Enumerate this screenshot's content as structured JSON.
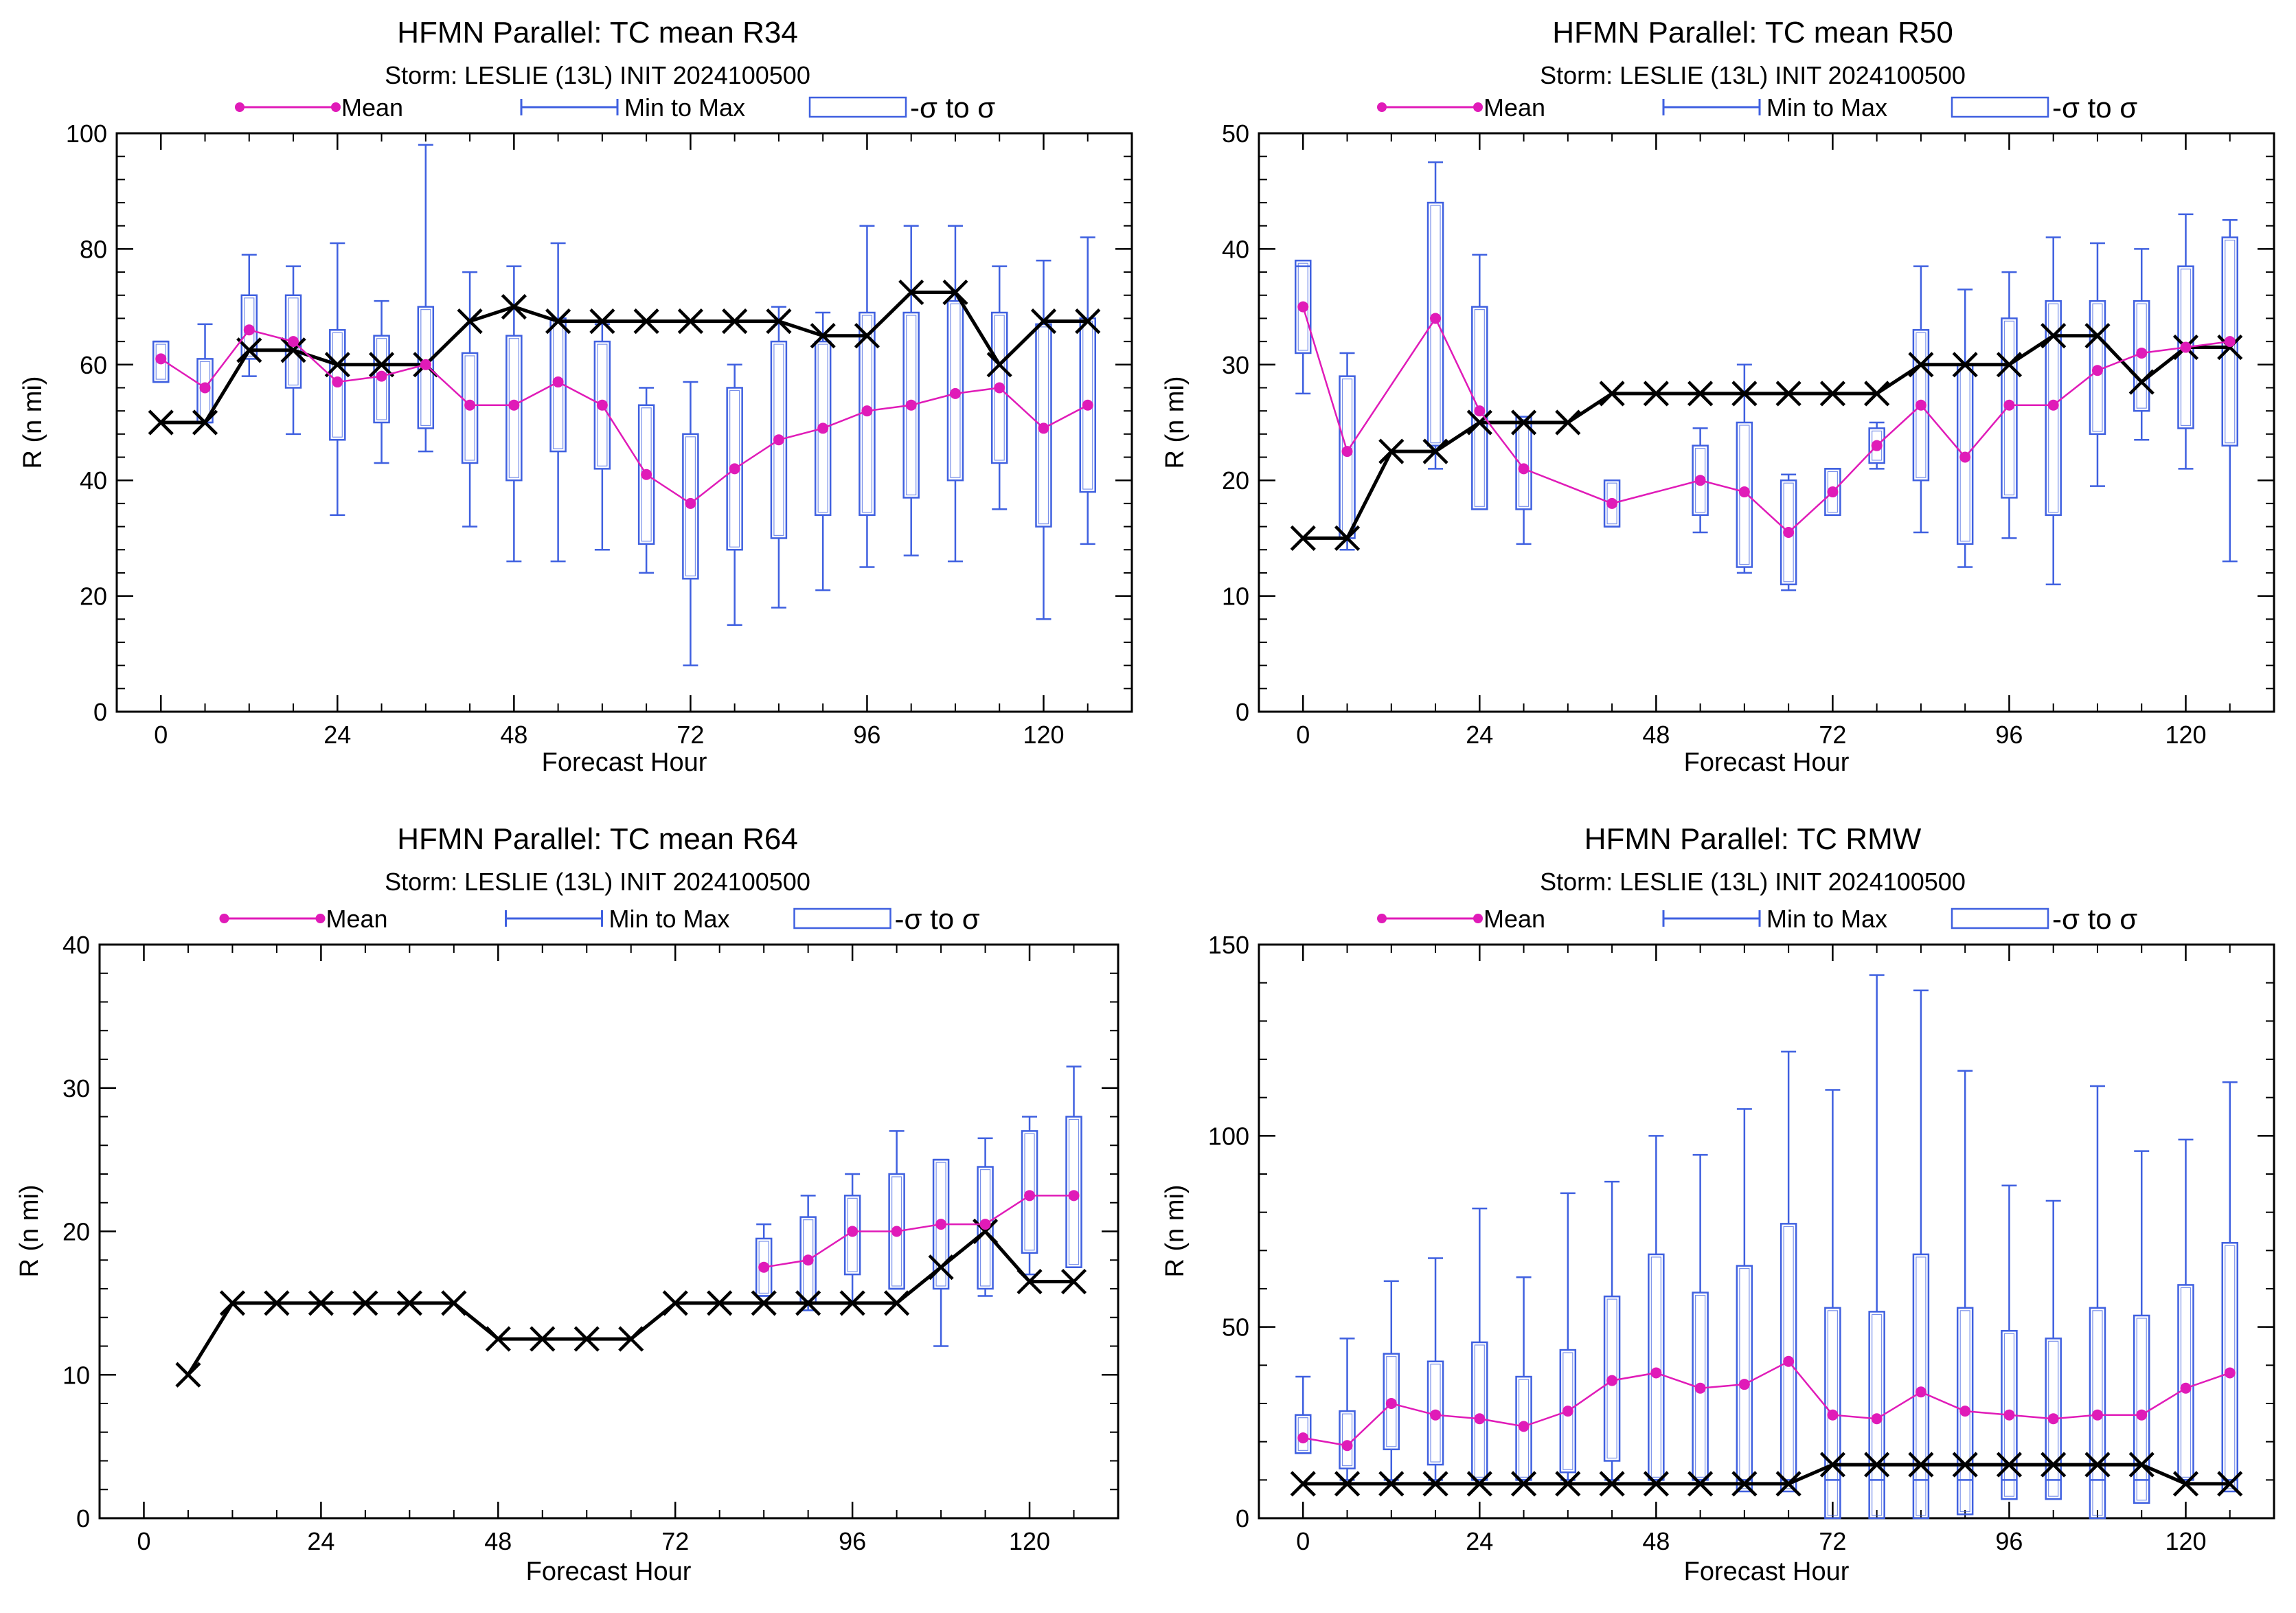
{
  "colors": {
    "mean": "#e01bb8",
    "minmax": "#3f60e0",
    "box": "#3f60e0",
    "obs": "#000000"
  },
  "legend": {
    "mean": "Mean",
    "minmax": "Min to Max",
    "sigma": "-σ to σ"
  },
  "chart_data": [
    {
      "type": "box",
      "title": "HFMN Parallel: TC mean R34",
      "subtitle": "Storm: LESLIE (13L) INIT 2024100500",
      "xlabel": "Forecast Hour",
      "ylabel": "R (n mi)",
      "xlim": [
        -6,
        132
      ],
      "ylim": [
        0,
        100
      ],
      "xticks": [
        0,
        24,
        48,
        72,
        96,
        120
      ],
      "yticks": [
        0,
        20,
        40,
        60,
        80,
        100
      ],
      "legend_position": "top",
      "mean": {
        "x": [
          0,
          6,
          12,
          18,
          24,
          30,
          36,
          42,
          48,
          54,
          60,
          66,
          72,
          78,
          84,
          90,
          96,
          102,
          108,
          114,
          120,
          126
        ],
        "y": [
          61,
          56,
          66,
          64,
          57,
          58,
          60,
          53,
          53,
          57,
          53,
          41,
          36,
          42,
          47,
          49,
          52,
          53,
          55,
          56,
          49,
          53
        ]
      },
      "min": [
        57,
        50,
        58,
        48,
        34,
        43,
        45,
        32,
        26,
        26,
        28,
        24,
        8,
        15,
        18,
        21,
        25,
        27,
        26,
        35,
        16,
        29
      ],
      "max": [
        64,
        67,
        79,
        77,
        81,
        71,
        98,
        76,
        77,
        81,
        67,
        56,
        57,
        60,
        70,
        69,
        84,
        84,
        84,
        77,
        78,
        82
      ],
      "sigma_low": [
        57,
        50,
        61,
        56,
        47,
        50,
        49,
        43,
        40,
        45,
        42,
        29,
        23,
        28,
        30,
        34,
        34,
        37,
        40,
        43,
        32,
        38
      ],
      "sigma_high": [
        64,
        61,
        72,
        72,
        66,
        65,
        70,
        62,
        65,
        68,
        64,
        53,
        48,
        56,
        64,
        64,
        69,
        69,
        71,
        69,
        67,
        68
      ],
      "observed": {
        "x": [
          0,
          6,
          12,
          18,
          24,
          30,
          36,
          42,
          48,
          54,
          60,
          66,
          72,
          78,
          84,
          90,
          96,
          102,
          108,
          114,
          120,
          126
        ],
        "y": [
          50,
          50,
          62.5,
          62.5,
          60,
          60,
          60,
          67.5,
          70,
          67.5,
          67.5,
          67.5,
          67.5,
          67.5,
          67.5,
          65,
          65,
          72.5,
          72.5,
          60,
          67.5,
          67.5
        ]
      }
    },
    {
      "type": "box",
      "title": "HFMN Parallel: TC mean R50",
      "subtitle": "Storm: LESLIE (13L) INIT 2024100500",
      "xlabel": "Forecast Hour",
      "ylabel": "R (n mi)",
      "xlim": [
        -6,
        132
      ],
      "ylim": [
        0,
        50
      ],
      "xticks": [
        0,
        24,
        48,
        72,
        96,
        120
      ],
      "yticks": [
        0,
        10,
        20,
        30,
        40,
        50
      ],
      "legend_position": "top",
      "mean": {
        "x": [
          0,
          6,
          18,
          24,
          30,
          42,
          54,
          60,
          66,
          72,
          78,
          84,
          90,
          96,
          102,
          108,
          114,
          120,
          126
        ],
        "y": [
          35,
          22.5,
          34,
          26,
          21,
          18,
          20,
          19,
          15.5,
          19,
          23,
          26.5,
          22,
          26.5,
          26.5,
          29.5,
          31,
          31.5,
          32
        ]
      },
      "min": [
        27.5,
        14,
        21,
        17.5,
        14.5,
        16,
        15.5,
        12,
        10.5,
        17,
        21,
        15.5,
        12.5,
        15,
        11,
        19.5,
        23.5,
        21,
        13
      ],
      "max": [
        38.5,
        31,
        47.5,
        39.5,
        25.5,
        20,
        24.5,
        30,
        20.5,
        21,
        25,
        38.5,
        36.5,
        38,
        41,
        40.5,
        40,
        43,
        42.5
      ],
      "sigma_low": [
        31,
        15,
        23,
        17.5,
        17.5,
        16,
        17,
        12.5,
        11,
        17,
        21.5,
        20,
        14.5,
        18.5,
        17,
        24,
        26,
        24.5,
        23
      ],
      "sigma_high": [
        39,
        29,
        44,
        35,
        25.5,
        20,
        23,
        25,
        20,
        21,
        24.5,
        33,
        30,
        34,
        35.5,
        35.5,
        35.5,
        38.5,
        41
      ],
      "observed": {
        "x": [
          0,
          6,
          12,
          18,
          24,
          30,
          36,
          42,
          48,
          54,
          60,
          66,
          72,
          78,
          84,
          90,
          96,
          102,
          108,
          114,
          120,
          126
        ],
        "y": [
          15,
          15,
          22.5,
          22.5,
          25,
          25,
          25,
          27.5,
          27.5,
          27.5,
          27.5,
          27.5,
          27.5,
          27.5,
          30,
          30,
          30,
          32.5,
          32.5,
          28.5,
          31.5,
          31.5
        ]
      }
    },
    {
      "type": "box",
      "title": "HFMN Parallel: TC mean R64",
      "subtitle": "Storm: LESLIE (13L) INIT 2024100500",
      "xlabel": "Forecast Hour",
      "ylabel": "R (n mi)",
      "xlim": [
        -6,
        132
      ],
      "ylim": [
        0,
        40
      ],
      "xticks": [
        0,
        24,
        48,
        72,
        96,
        120
      ],
      "yticks": [
        0,
        10,
        20,
        30,
        40
      ],
      "legend_position": "top",
      "mean": {
        "x": [
          84,
          90,
          96,
          102,
          108,
          114,
          120,
          126
        ],
        "y": [
          17.5,
          18,
          20,
          20,
          20.5,
          20.5,
          22.5,
          22.5
        ]
      },
      "min": [
        15.5,
        14.5,
        15,
        16,
        12,
        15.5,
        17,
        17.5
      ],
      "max": [
        20.5,
        22.5,
        24,
        27,
        25,
        26.5,
        28,
        31.5
      ],
      "sigma_low": [
        15.5,
        15,
        17,
        16,
        16,
        16,
        18.5,
        17.5
      ],
      "sigma_high": [
        19.5,
        21,
        22.5,
        24,
        25,
        24.5,
        27,
        28
      ],
      "observed": {
        "x": [
          6,
          12,
          18,
          24,
          30,
          36,
          42,
          48,
          54,
          60,
          66,
          72,
          78,
          84,
          90,
          96,
          102,
          108,
          114,
          120,
          126
        ],
        "y": [
          10,
          15,
          15,
          15,
          15,
          15,
          15,
          12.5,
          12.5,
          12.5,
          12.5,
          15,
          15,
          15,
          15,
          15,
          15,
          17.5,
          20,
          16.5,
          16.5
        ]
      }
    },
    {
      "type": "box",
      "title": "HFMN Parallel: TC RMW",
      "subtitle": "Storm: LESLIE (13L) INIT 2024100500",
      "xlabel": "Forecast Hour",
      "ylabel": "R (n mi)",
      "xlim": [
        -6,
        132
      ],
      "ylim": [
        0,
        150
      ],
      "xticks": [
        0,
        24,
        48,
        72,
        96,
        120
      ],
      "yticks": [
        0,
        50,
        100,
        150
      ],
      "legend_position": "top",
      "mean": {
        "x": [
          0,
          6,
          12,
          18,
          24,
          30,
          36,
          42,
          48,
          54,
          60,
          66,
          72,
          78,
          84,
          90,
          96,
          102,
          108,
          114,
          120,
          126
        ],
        "y": [
          21,
          19,
          30,
          27,
          26,
          24,
          28,
          36,
          38,
          34,
          35,
          41,
          27,
          26,
          33,
          28,
          27,
          26,
          27,
          27,
          34,
          38
        ]
      },
      "min": [
        17,
        10,
        10,
        10,
        10,
        10,
        10,
        10,
        10,
        10,
        10,
        10,
        10,
        10,
        10,
        10,
        10,
        10,
        10,
        10,
        10,
        10
      ],
      "max": [
        37,
        47,
        62,
        68,
        81,
        63,
        85,
        88,
        100,
        95,
        107,
        122,
        112,
        142,
        138,
        117,
        87,
        83,
        113,
        96,
        99,
        114
      ],
      "sigma_low": [
        17,
        13,
        18,
        14,
        10,
        10,
        12,
        15,
        10,
        10,
        7,
        7,
        0,
        0,
        0,
        1,
        5,
        5,
        0,
        4,
        10,
        7
      ],
      "sigma_high": [
        27,
        28,
        43,
        41,
        46,
        37,
        44,
        58,
        69,
        59,
        66,
        77,
        55,
        54,
        69,
        55,
        49,
        47,
        55,
        53,
        61,
        72
      ],
      "observed": {
        "x": [
          0,
          6,
          12,
          18,
          24,
          30,
          36,
          42,
          48,
          54,
          60,
          66,
          72,
          78,
          84,
          90,
          96,
          102,
          108,
          114,
          120,
          126
        ],
        "y": [
          9,
          9,
          9,
          9,
          9,
          9,
          9,
          9,
          9,
          9,
          9,
          9,
          14,
          14,
          14,
          14,
          14,
          14,
          14,
          14,
          9,
          9
        ]
      }
    }
  ]
}
